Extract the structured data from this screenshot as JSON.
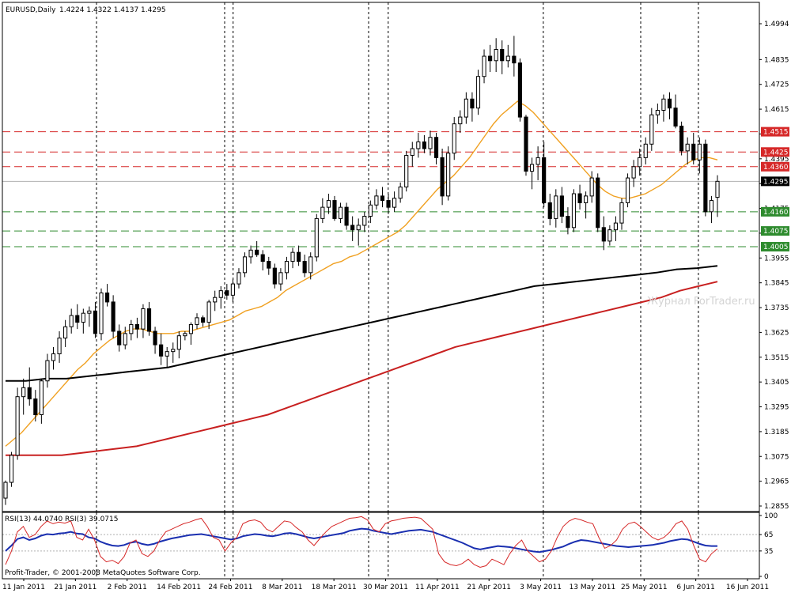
{
  "header": {
    "symbol": "EURUSD,Daily",
    "ohlc": "1.4224 1.4322 1.4137 1.4295"
  },
  "watermark": "Журнал ForTrader.ru",
  "copyright": "Profit-Trader, © 2001-2008 MetaQuotes Software Corp.",
  "rsi_panel": {
    "label": "RSI(13) 44.0740 RSI(3) 39.0715",
    "range": [
      0,
      100
    ],
    "ticks": [
      "100",
      "65",
      "35",
      "0"
    ]
  },
  "colors": {
    "price_tag_bg": "#000000",
    "resistance": "#d62828",
    "support": "#2e8b2e",
    "ma_fast": "#f0a020",
    "ma_black": "#000000",
    "ma_red": "#c82020",
    "rsi_fast": "#d62828",
    "rsi_slow": "#1a2fb0",
    "grid": "#000000"
  },
  "chart_data": {
    "type": "candlestick",
    "instrument": "EURUSD",
    "timeframe": "Daily",
    "ylim": [
      1.2855,
      1.4994
    ],
    "y_ticks": [
      "1.4994",
      "1.4835",
      "1.4725",
      "1.4615",
      "1.4505",
      "1.4395",
      "1.4285",
      "1.4175",
      "1.4065",
      "1.3955",
      "1.3845",
      "1.3735",
      "1.3625",
      "1.3515",
      "1.3405",
      "1.3295",
      "1.3185",
      "1.3075",
      "1.2965",
      "1.2855"
    ],
    "x_ticks": [
      "11 Jan 2011",
      "21 Jan 2011",
      "2 Feb 2011",
      "14 Feb 2011",
      "24 Feb 2011",
      "8 Mar 2011",
      "18 Mar 2011",
      "30 Mar 2011",
      "11 Apr 2011",
      "21 Apr 2011",
      "3 May 2011",
      "13 May 2011",
      "25 May 2011",
      "6 Jun 2011",
      "16 Jun 2011"
    ],
    "current_price": "1.4295",
    "levels": [
      {
        "value": "1.4515",
        "kind": "resistance"
      },
      {
        "value": "1.4425",
        "kind": "resistance"
      },
      {
        "value": "1.4360",
        "kind": "resistance"
      },
      {
        "value": "1.4160",
        "kind": "support"
      },
      {
        "value": "1.4075",
        "kind": "support"
      },
      {
        "value": "1.4005",
        "kind": "support"
      }
    ],
    "candles": [
      [
        1.289,
        1.2968,
        1.286,
        1.296
      ],
      [
        1.296,
        1.3095,
        1.294,
        1.308
      ],
      [
        1.308,
        1.338,
        1.306,
        1.334
      ],
      [
        1.334,
        1.342,
        1.326,
        1.338
      ],
      [
        1.338,
        1.347,
        1.33,
        1.333
      ],
      [
        1.333,
        1.337,
        1.323,
        1.326
      ],
      [
        1.326,
        1.342,
        1.322,
        1.341
      ],
      [
        1.341,
        1.353,
        1.338,
        1.35
      ],
      [
        1.35,
        1.356,
        1.346,
        1.353
      ],
      [
        1.353,
        1.363,
        1.349,
        1.36
      ],
      [
        1.36,
        1.368,
        1.356,
        1.365
      ],
      [
        1.365,
        1.373,
        1.362,
        1.37
      ],
      [
        1.37,
        1.375,
        1.364,
        1.367
      ],
      [
        1.367,
        1.373,
        1.362,
        1.371
      ],
      [
        1.371,
        1.374,
        1.365,
        1.372
      ],
      [
        1.372,
        1.376,
        1.36,
        1.362
      ],
      [
        1.362,
        1.382,
        1.359,
        1.38
      ],
      [
        1.38,
        1.384,
        1.374,
        1.376
      ],
      [
        1.376,
        1.379,
        1.36,
        1.363
      ],
      [
        1.363,
        1.366,
        1.354,
        1.357
      ],
      [
        1.357,
        1.365,
        1.355,
        1.362
      ],
      [
        1.362,
        1.368,
        1.359,
        1.366
      ],
      [
        1.366,
        1.369,
        1.36,
        1.364
      ],
      [
        1.364,
        1.375,
        1.36,
        1.373
      ],
      [
        1.373,
        1.376,
        1.361,
        1.363
      ],
      [
        1.363,
        1.365,
        1.353,
        1.357
      ],
      [
        1.357,
        1.362,
        1.348,
        1.352
      ],
      [
        1.352,
        1.356,
        1.347,
        1.354
      ],
      [
        1.354,
        1.358,
        1.349,
        1.355
      ],
      [
        1.355,
        1.363,
        1.351,
        1.361
      ],
      [
        1.361,
        1.363,
        1.359,
        1.362
      ],
      [
        1.362,
        1.367,
        1.357,
        1.366
      ],
      [
        1.366,
        1.371,
        1.364,
        1.369
      ],
      [
        1.369,
        1.37,
        1.365,
        1.367
      ],
      [
        1.367,
        1.377,
        1.364,
        1.376
      ],
      [
        1.376,
        1.381,
        1.372,
        1.378
      ],
      [
        1.378,
        1.383,
        1.373,
        1.381
      ],
      [
        1.381,
        1.384,
        1.377,
        1.379
      ],
      [
        1.379,
        1.386,
        1.376,
        1.384
      ],
      [
        1.384,
        1.391,
        1.382,
        1.389
      ],
      [
        1.389,
        1.398,
        1.387,
        1.396
      ],
      [
        1.396,
        1.401,
        1.393,
        1.399
      ],
      [
        1.399,
        1.403,
        1.396,
        1.397
      ],
      [
        1.397,
        1.399,
        1.39,
        1.394
      ],
      [
        1.394,
        1.396,
        1.388,
        1.391
      ],
      [
        1.391,
        1.393,
        1.382,
        1.384
      ],
      [
        1.384,
        1.391,
        1.381,
        1.389
      ],
      [
        1.389,
        1.396,
        1.386,
        1.394
      ],
      [
        1.394,
        1.4,
        1.391,
        1.398
      ],
      [
        1.398,
        1.401,
        1.392,
        1.394
      ],
      [
        1.394,
        1.397,
        1.387,
        1.389
      ],
      [
        1.389,
        1.398,
        1.386,
        1.396
      ],
      [
        1.396,
        1.415,
        1.394,
        1.413
      ],
      [
        1.413,
        1.422,
        1.411,
        1.418
      ],
      [
        1.418,
        1.424,
        1.415,
        1.421
      ],
      [
        1.421,
        1.423,
        1.412,
        1.413
      ],
      [
        1.413,
        1.42,
        1.411,
        1.418
      ],
      [
        1.418,
        1.42,
        1.408,
        1.41
      ],
      [
        1.41,
        1.414,
        1.403,
        1.408
      ],
      [
        1.408,
        1.413,
        1.401,
        1.41
      ],
      [
        1.41,
        1.416,
        1.407,
        1.414
      ],
      [
        1.414,
        1.421,
        1.411,
        1.419
      ],
      [
        1.419,
        1.426,
        1.417,
        1.423
      ],
      [
        1.423,
        1.427,
        1.418,
        1.421
      ],
      [
        1.421,
        1.424,
        1.415,
        1.418
      ],
      [
        1.418,
        1.425,
        1.416,
        1.422
      ],
      [
        1.422,
        1.429,
        1.42,
        1.427
      ],
      [
        1.427,
        1.443,
        1.425,
        1.441
      ],
      [
        1.441,
        1.447,
        1.436,
        1.444
      ],
      [
        1.444,
        1.451,
        1.44,
        1.447
      ],
      [
        1.447,
        1.45,
        1.442,
        1.444
      ],
      [
        1.444,
        1.452,
        1.441,
        1.449
      ],
      [
        1.449,
        1.451,
        1.437,
        1.44
      ],
      [
        1.44,
        1.444,
        1.419,
        1.423
      ],
      [
        1.423,
        1.445,
        1.421,
        1.442
      ],
      [
        1.442,
        1.458,
        1.439,
        1.455
      ],
      [
        1.455,
        1.461,
        1.451,
        1.458
      ],
      [
        1.458,
        1.469,
        1.455,
        1.466
      ],
      [
        1.466,
        1.469,
        1.456,
        1.462
      ],
      [
        1.462,
        1.479,
        1.459,
        1.476
      ],
      [
        1.476,
        1.488,
        1.473,
        1.485
      ],
      [
        1.485,
        1.49,
        1.478,
        1.483
      ],
      [
        1.483,
        1.493,
        1.478,
        1.488
      ],
      [
        1.488,
        1.492,
        1.477,
        1.483
      ],
      [
        1.483,
        1.49,
        1.48,
        1.485
      ],
      [
        1.485,
        1.494,
        1.476,
        1.482
      ],
      [
        1.482,
        1.484,
        1.456,
        1.458
      ],
      [
        1.458,
        1.459,
        1.432,
        1.434
      ],
      [
        1.434,
        1.44,
        1.426,
        1.437
      ],
      [
        1.437,
        1.445,
        1.43,
        1.44
      ],
      [
        1.44,
        1.447,
        1.418,
        1.42
      ],
      [
        1.42,
        1.424,
        1.41,
        1.413
      ],
      [
        1.413,
        1.426,
        1.409,
        1.423
      ],
      [
        1.423,
        1.427,
        1.411,
        1.414
      ],
      [
        1.414,
        1.418,
        1.406,
        1.409
      ],
      [
        1.409,
        1.426,
        1.407,
        1.424
      ],
      [
        1.424,
        1.428,
        1.417,
        1.42
      ],
      [
        1.42,
        1.425,
        1.413,
        1.423
      ],
      [
        1.423,
        1.434,
        1.42,
        1.431
      ],
      [
        1.431,
        1.433,
        1.407,
        1.409
      ],
      [
        1.409,
        1.414,
        1.399,
        1.403
      ],
      [
        1.403,
        1.41,
        1.401,
        1.408
      ],
      [
        1.408,
        1.414,
        1.403,
        1.411
      ],
      [
        1.411,
        1.422,
        1.408,
        1.42
      ],
      [
        1.42,
        1.433,
        1.418,
        1.431
      ],
      [
        1.431,
        1.439,
        1.427,
        1.436
      ],
      [
        1.436,
        1.444,
        1.432,
        1.44
      ],
      [
        1.44,
        1.449,
        1.437,
        1.446
      ],
      [
        1.446,
        1.462,
        1.443,
        1.459
      ],
      [
        1.459,
        1.464,
        1.455,
        1.461
      ],
      [
        1.461,
        1.468,
        1.456,
        1.466
      ],
      [
        1.466,
        1.469,
        1.457,
        1.462
      ],
      [
        1.462,
        1.468,
        1.453,
        1.454
      ],
      [
        1.454,
        1.456,
        1.441,
        1.443
      ],
      [
        1.443,
        1.449,
        1.437,
        1.446
      ],
      [
        1.446,
        1.451,
        1.437,
        1.439
      ],
      [
        1.439,
        1.449,
        1.433,
        1.446
      ],
      [
        1.446,
        1.448,
        1.414,
        1.416
      ],
      [
        1.416,
        1.423,
        1.411,
        1.421
      ],
      [
        1.4224,
        1.4322,
        1.4137,
        1.4295
      ]
    ],
    "moving_averages": [
      {
        "color": "#f0a020",
        "values": [
          1.312,
          1.315,
          1.318,
          1.322,
          1.326,
          1.33,
          1.334,
          1.338,
          1.342,
          1.346,
          1.349,
          1.353,
          1.356,
          1.359,
          1.361,
          1.363,
          1.364,
          1.364,
          1.363,
          1.362,
          1.362,
          1.362,
          1.363,
          1.363,
          1.364,
          1.365,
          1.366,
          1.367,
          1.368,
          1.37,
          1.372,
          1.373,
          1.374,
          1.376,
          1.378,
          1.381,
          1.383,
          1.385,
          1.387,
          1.389,
          1.391,
          1.393,
          1.394,
          1.396,
          1.397,
          1.399,
          1.401,
          1.403,
          1.405,
          1.407,
          1.41,
          1.414,
          1.418,
          1.422,
          1.426,
          1.429,
          1.432,
          1.436,
          1.44,
          1.445,
          1.45,
          1.455,
          1.459,
          1.462,
          1.465,
          1.463,
          1.46,
          1.456,
          1.452,
          1.448,
          1.444,
          1.44,
          1.436,
          1.432,
          1.428,
          1.425,
          1.423,
          1.422,
          1.422,
          1.423,
          1.424,
          1.426,
          1.428,
          1.431,
          1.434,
          1.437,
          1.439,
          1.44,
          1.44,
          1.439
        ]
      },
      {
        "color": "#000000",
        "values": [
          1.341,
          1.341,
          1.342,
          1.342,
          1.343,
          1.344,
          1.345,
          1.346,
          1.347,
          1.349,
          1.351,
          1.353,
          1.355,
          1.357,
          1.359,
          1.361,
          1.363,
          1.365,
          1.367,
          1.369,
          1.371,
          1.373,
          1.375,
          1.377,
          1.379,
          1.381,
          1.383,
          1.384,
          1.385,
          1.386,
          1.387,
          1.388,
          1.389,
          1.3905,
          1.391,
          1.392
        ]
      },
      {
        "color": "#c82020",
        "values": [
          1.308,
          1.308,
          1.308,
          1.308,
          1.309,
          1.31,
          1.311,
          1.312,
          1.314,
          1.316,
          1.318,
          1.32,
          1.322,
          1.324,
          1.326,
          1.329,
          1.332,
          1.335,
          1.338,
          1.341,
          1.344,
          1.347,
          1.35,
          1.353,
          1.356,
          1.358,
          1.36,
          1.362,
          1.364,
          1.366,
          1.368,
          1.37,
          1.372,
          1.374,
          1.376,
          1.378,
          1.381,
          1.383,
          1.385
        ]
      }
    ],
    "rsi": {
      "series": [
        {
          "color": "#1a2fb0",
          "values": [
            35,
            45,
            57,
            60,
            55,
            58,
            63,
            66,
            65,
            67,
            68,
            70,
            67,
            66,
            60,
            58,
            52,
            48,
            45,
            44,
            46,
            50,
            52,
            48,
            46,
            48,
            52,
            55,
            58,
            60,
            62,
            64,
            65,
            66,
            64,
            62,
            60,
            58,
            56,
            58,
            62,
            64,
            66,
            65,
            63,
            62,
            64,
            67,
            68,
            66,
            63,
            60,
            58,
            60,
            62,
            64,
            66,
            68,
            72,
            74,
            76,
            75,
            72,
            70,
            68,
            66,
            68,
            70,
            72,
            73,
            74,
            72,
            70,
            66,
            62,
            58,
            54,
            50,
            45,
            40,
            38,
            40,
            42,
            44,
            43,
            42,
            40,
            38,
            36,
            34,
            33,
            35,
            37,
            40,
            43,
            48,
            52,
            55,
            54,
            52,
            50,
            48,
            46,
            44,
            43,
            42,
            43,
            44,
            45,
            46,
            48,
            50,
            53,
            55,
            57,
            56,
            52,
            48,
            45,
            44,
            44
          ]
        },
        {
          "color": "#d62828",
          "values": [
            10,
            35,
            70,
            80,
            60,
            65,
            80,
            90,
            85,
            88,
            86,
            90,
            60,
            55,
            75,
            55,
            25,
            15,
            18,
            12,
            25,
            50,
            55,
            30,
            25,
            35,
            55,
            70,
            75,
            80,
            85,
            88,
            92,
            95,
            80,
            60,
            55,
            35,
            50,
            60,
            85,
            90,
            92,
            88,
            75,
            70,
            80,
            90,
            88,
            78,
            70,
            55,
            45,
            58,
            70,
            80,
            85,
            90,
            95,
            96,
            98,
            92,
            75,
            70,
            85,
            90,
            92,
            95,
            96,
            97,
            95,
            85,
            75,
            30,
            15,
            10,
            8,
            12,
            20,
            10,
            5,
            8,
            20,
            15,
            10,
            30,
            45,
            55,
            35,
            25,
            15,
            20,
            35,
            60,
            80,
            90,
            95,
            92,
            88,
            85,
            60,
            40,
            45,
            55,
            75,
            85,
            88,
            80,
            70,
            60,
            55,
            60,
            70,
            85,
            90,
            75,
            45,
            20,
            15,
            30,
            39
          ]
        }
      ],
      "levels": [
        65,
        35
      ]
    }
  }
}
